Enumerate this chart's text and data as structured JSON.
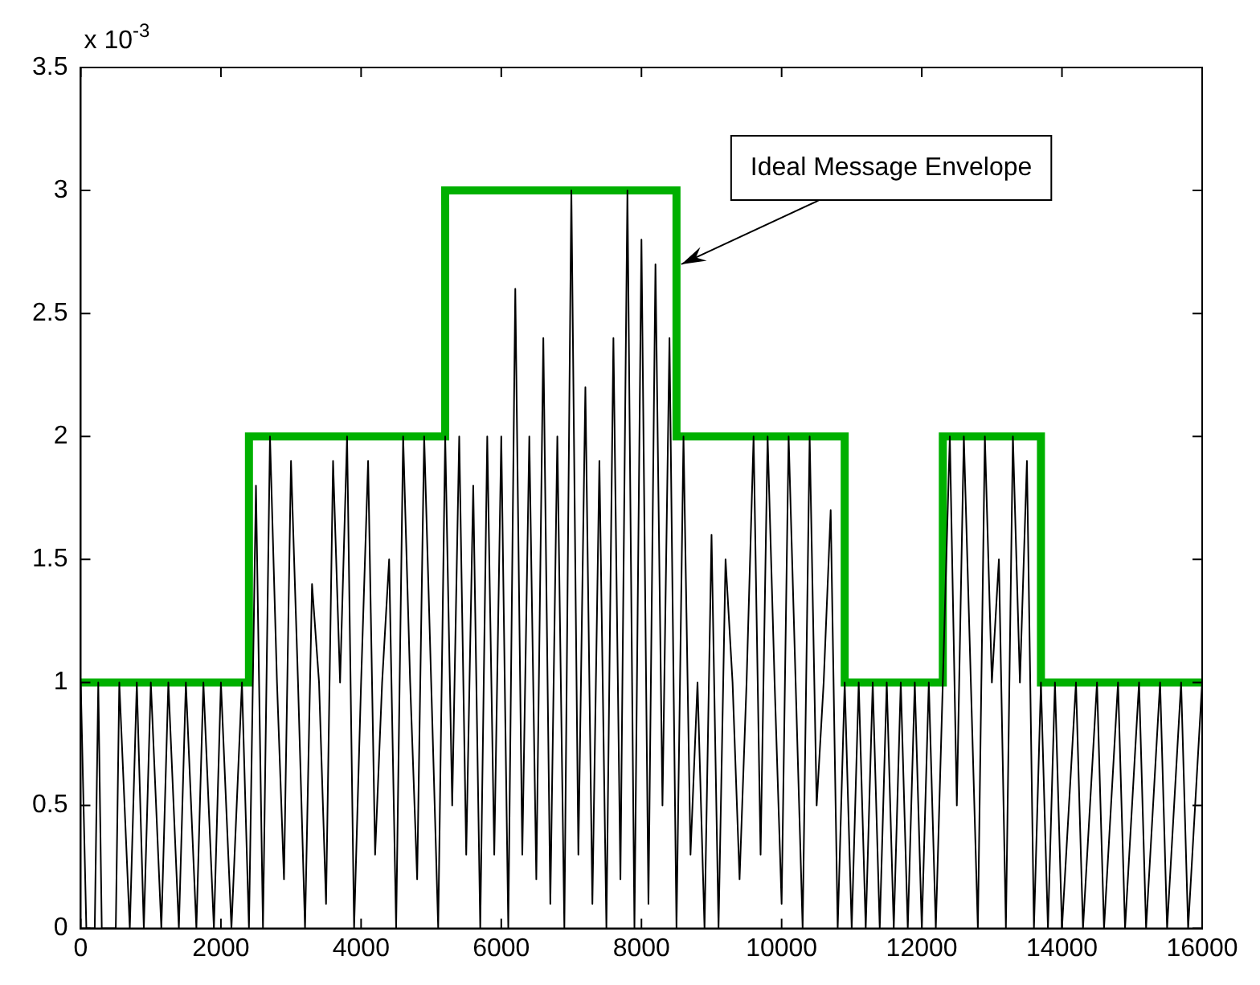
{
  "chart_data": {
    "type": "line",
    "xlim": [
      0,
      16000
    ],
    "xticks": [
      0,
      2000,
      4000,
      6000,
      8000,
      10000,
      12000,
      14000,
      16000
    ],
    "ylim": [
      0,
      3.5
    ],
    "yticks": [
      0,
      0.5,
      1,
      1.5,
      2,
      2.5,
      3,
      3.5
    ],
    "grid": false,
    "legend": false,
    "marker": "none",
    "line_style": "solid",
    "annotations": [
      "x 10$^{-3}$",
      {
        "text": "Ideal Message Envelope",
        "x": 8500,
        "y": 2.7
      }
    ],
    "series": [
      {
        "color": "#000000",
        "x": [
          0,
          80,
          200,
          250,
          300,
          500,
          550,
          700,
          800,
          900,
          1000,
          1150,
          1250,
          1400,
          1500,
          1650,
          1750,
          1900,
          2000,
          2150,
          2300,
          2400,
          2500,
          2600,
          2700,
          2800,
          2900,
          3000,
          3100,
          3200,
          3300,
          3400,
          3500,
          3600,
          3700,
          3800,
          3900,
          4000,
          4100,
          4200,
          4300,
          4400,
          4500,
          4600,
          4700,
          4800,
          4900,
          5000,
          5100,
          5200,
          5300,
          5400,
          5500,
          5600,
          5700,
          5800,
          5900,
          6000,
          6100,
          6200,
          6300,
          6400,
          6500,
          6600,
          6700,
          6800,
          6900,
          7000,
          7100,
          7200,
          7300,
          7400,
          7500,
          7600,
          7700,
          7800,
          7900,
          8000,
          8100,
          8200,
          8300,
          8400,
          8500,
          8600,
          8700,
          8800,
          8900,
          9000,
          9100,
          9200,
          9300,
          9400,
          9500,
          9600,
          9700,
          9800,
          9900,
          10000,
          10100,
          10200,
          10300,
          10400,
          10500,
          10600,
          10700,
          10800,
          10900,
          11000,
          11100,
          11200,
          11300,
          11400,
          11500,
          11600,
          11700,
          11800,
          11900,
          12000,
          12100,
          12200,
          12300,
          12400,
          12500,
          12600,
          12700,
          12800,
          12900,
          13000,
          13100,
          13200,
          13300,
          13400,
          13500,
          13600,
          13700,
          13800,
          13900,
          14000,
          14200,
          14300,
          14500,
          14600,
          14800,
          14900,
          15100,
          15200,
          15400,
          15500,
          15700,
          15800,
          16000
        ],
        "values": [
          1,
          0,
          0,
          1,
          0,
          0,
          1,
          0,
          1,
          0,
          1,
          0,
          1,
          0,
          1,
          0,
          1,
          0,
          1,
          0,
          1,
          0,
          1.8,
          0,
          2,
          1,
          0.2,
          1.9,
          1,
          0,
          1.4,
          1,
          0.1,
          1.9,
          1,
          2,
          0,
          1,
          1.9,
          0.3,
          1,
          1.5,
          0,
          2,
          1,
          0.2,
          2,
          1,
          0,
          2,
          0.5,
          2,
          0.3,
          1.8,
          0,
          2,
          0.3,
          2,
          0,
          2.6,
          0.3,
          2,
          0.2,
          2.4,
          0.1,
          2,
          0,
          3,
          0.3,
          2.2,
          0.1,
          1.9,
          0,
          2.4,
          0.2,
          3,
          0,
          2.8,
          0.1,
          2.7,
          0.5,
          2.4,
          0,
          2,
          0.3,
          1,
          0,
          1.6,
          0,
          1.5,
          1,
          0.2,
          1,
          2,
          0.3,
          2,
          1,
          0.1,
          2,
          1,
          0,
          2,
          0.5,
          1,
          1.7,
          0,
          1,
          0,
          1,
          0,
          1,
          0,
          1,
          0,
          1,
          0,
          1,
          0,
          1,
          0,
          1,
          2,
          0.5,
          2,
          1,
          0,
          2,
          1,
          1.5,
          0,
          2,
          1,
          1.9,
          0,
          1,
          0,
          1,
          0,
          1,
          0,
          1,
          0,
          1,
          0,
          1,
          0,
          1,
          0,
          1,
          0,
          1
        ]
      },
      {
        "type": "step",
        "color": "#00b000",
        "x": [
          0,
          2400,
          5200,
          8500,
          10900,
          12300,
          13700,
          16000
        ],
        "values": [
          1,
          2,
          3,
          2,
          1,
          2,
          1,
          1
        ]
      }
    ]
  }
}
